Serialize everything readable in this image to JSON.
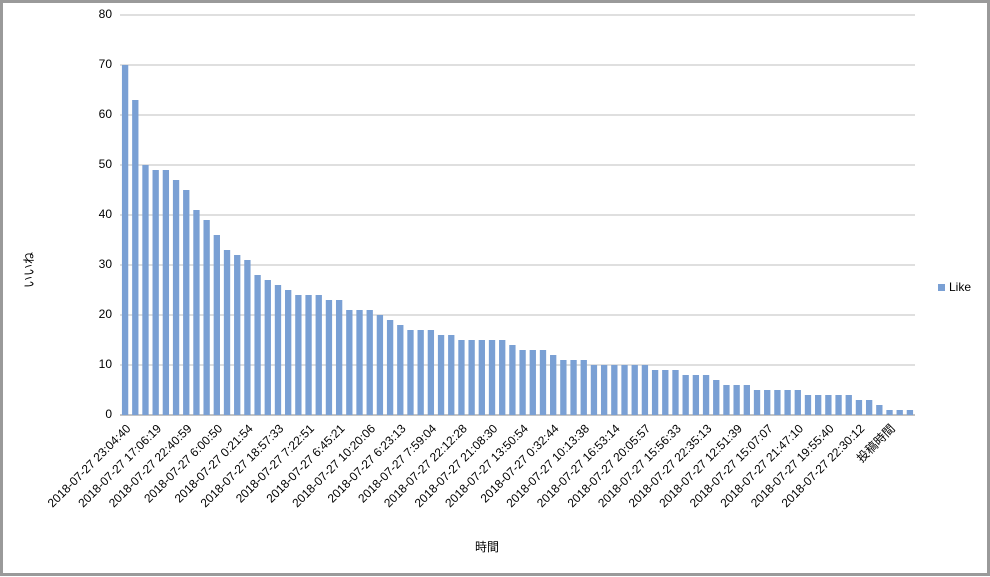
{
  "chart_data": {
    "type": "bar",
    "x_label": "時間",
    "y_label": "いいね",
    "categories": [
      "2018-07-27 23:04:40",
      null,
      null,
      "2018-07-27 17:06:19",
      null,
      null,
      "2018-07-27 22:40:59",
      null,
      null,
      "2018-07-27 6:00:50",
      null,
      null,
      "2018-07-27 0:21:54",
      null,
      null,
      "2018-07-27 18:57:33",
      null,
      null,
      "2018-07-27 7:22:51",
      null,
      null,
      "2018-07-27 6:45:21",
      null,
      null,
      "2018-07-27 10:20:06",
      null,
      null,
      "2018-07-27 6:23:13",
      null,
      null,
      "2018-07-27 7:59:04",
      null,
      null,
      "2018-07-27 22:12:28",
      null,
      null,
      "2018-07-27 21:08:30",
      null,
      null,
      "2018-07-27 13:50:54",
      null,
      null,
      "2018-07-27 0:32:44",
      null,
      null,
      "2018-07-27 10:13:38",
      null,
      null,
      "2018-07-27 16:53:14",
      null,
      null,
      "2018-07-27 20:05:57",
      null,
      null,
      "2018-07-27 15:56:33",
      null,
      null,
      "2018-07-27 22:35:13",
      null,
      null,
      "2018-07-27 12:51:39",
      null,
      null,
      "2018-07-27 15:07:07",
      null,
      null,
      "2018-07-27 21:47:10",
      null,
      null,
      "2018-07-27 19:55:40",
      null,
      null,
      "2018-07-27 22:30:12",
      null,
      null,
      "投稿時間",
      null,
      null
    ],
    "series": [
      {
        "name": "Like",
        "color": "#7aa0d4",
        "values": [
          70,
          63,
          50,
          49,
          49,
          47,
          45,
          41,
          39,
          36,
          33,
          32,
          31,
          28,
          27,
          26,
          25,
          24,
          24,
          24,
          23,
          23,
          21,
          21,
          21,
          20,
          19,
          18,
          17,
          17,
          17,
          16,
          16,
          15,
          15,
          15,
          15,
          15,
          14,
          13,
          13,
          13,
          12,
          11,
          11,
          11,
          10,
          10,
          10,
          10,
          10,
          10,
          9,
          9,
          9,
          8,
          8,
          8,
          7,
          6,
          6,
          6,
          5,
          5,
          5,
          5,
          5,
          4,
          4,
          4,
          4,
          4,
          3,
          3,
          2,
          1,
          1,
          1
        ]
      }
    ],
    "ylim": [
      0,
      80
    ],
    "yticks": [
      0,
      10,
      20,
      30,
      40,
      50,
      60,
      70,
      80
    ],
    "grid": true,
    "legend": "right"
  }
}
